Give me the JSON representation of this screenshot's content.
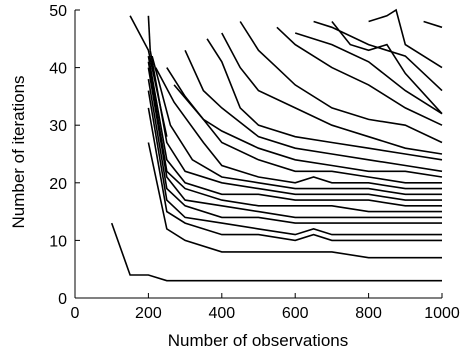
{
  "chart_data": {
    "type": "line",
    "title": "",
    "xlabel": "Number of observations",
    "ylabel": "Number of iterations",
    "xlim": [
      0,
      1000
    ],
    "ylim": [
      0,
      50
    ],
    "xticks": [
      0,
      200,
      400,
      600,
      800,
      1000
    ],
    "yticks": [
      0,
      10,
      20,
      30,
      40,
      50
    ],
    "xtick_labels": [
      "0",
      "200",
      "400",
      "600",
      "800",
      "1000"
    ],
    "ytick_labels": [
      "0",
      "10",
      "20",
      "30",
      "40",
      "50"
    ],
    "grid": false,
    "legend": "none",
    "line_color": "#000000",
    "series": [
      {
        "points": [
          [
            100,
            13
          ],
          [
            150,
            4
          ],
          [
            200,
            4
          ],
          [
            250,
            3
          ],
          [
            300,
            3
          ],
          [
            400,
            3
          ],
          [
            500,
            3
          ],
          [
            600,
            3
          ],
          [
            700,
            3
          ],
          [
            800,
            3
          ],
          [
            900,
            3
          ],
          [
            1000,
            3
          ]
        ]
      },
      {
        "points": [
          [
            200,
            27
          ],
          [
            250,
            12
          ],
          [
            300,
            10
          ],
          [
            400,
            8
          ],
          [
            500,
            8
          ],
          [
            600,
            8
          ],
          [
            700,
            8
          ],
          [
            800,
            7
          ],
          [
            900,
            7
          ],
          [
            1000,
            7
          ]
        ]
      },
      {
        "points": [
          [
            200,
            33
          ],
          [
            250,
            15
          ],
          [
            300,
            13
          ],
          [
            400,
            11
          ],
          [
            500,
            11
          ],
          [
            600,
            10
          ],
          [
            650,
            11
          ],
          [
            700,
            10
          ],
          [
            800,
            10
          ],
          [
            900,
            10
          ],
          [
            1000,
            10
          ]
        ]
      },
      {
        "points": [
          [
            200,
            36
          ],
          [
            250,
            17
          ],
          [
            300,
            14
          ],
          [
            400,
            13
          ],
          [
            500,
            12
          ],
          [
            600,
            11
          ],
          [
            650,
            12
          ],
          [
            700,
            11
          ],
          [
            800,
            11
          ],
          [
            900,
            11
          ],
          [
            1000,
            11
          ]
        ]
      },
      {
        "points": [
          [
            200,
            38
          ],
          [
            250,
            19
          ],
          [
            300,
            16
          ],
          [
            400,
            14
          ],
          [
            500,
            14
          ],
          [
            600,
            13
          ],
          [
            700,
            13
          ],
          [
            800,
            13
          ],
          [
            900,
            13
          ],
          [
            1000,
            13
          ]
        ]
      },
      {
        "points": [
          [
            200,
            40
          ],
          [
            250,
            21
          ],
          [
            300,
            17
          ],
          [
            400,
            16
          ],
          [
            500,
            15
          ],
          [
            600,
            14
          ],
          [
            700,
            14
          ],
          [
            800,
            14
          ],
          [
            900,
            14
          ],
          [
            1000,
            14
          ]
        ]
      },
      {
        "points": [
          [
            200,
            41
          ],
          [
            250,
            22
          ],
          [
            300,
            19
          ],
          [
            400,
            17
          ],
          [
            500,
            16
          ],
          [
            600,
            16
          ],
          [
            700,
            16
          ],
          [
            800,
            15
          ],
          [
            900,
            15
          ],
          [
            1000,
            15
          ]
        ]
      },
      {
        "points": [
          [
            200,
            42
          ],
          [
            250,
            24
          ],
          [
            300,
            20
          ],
          [
            400,
            18
          ],
          [
            500,
            18
          ],
          [
            600,
            17
          ],
          [
            700,
            17
          ],
          [
            800,
            17
          ],
          [
            900,
            16
          ],
          [
            1000,
            16
          ]
        ]
      },
      {
        "points": [
          [
            205,
            43
          ],
          [
            250,
            27
          ],
          [
            300,
            22
          ],
          [
            400,
            20
          ],
          [
            500,
            19
          ],
          [
            600,
            18
          ],
          [
            700,
            18
          ],
          [
            800,
            18
          ],
          [
            900,
            17
          ],
          [
            1000,
            17
          ]
        ]
      },
      {
        "points": [
          [
            210,
            42
          ],
          [
            260,
            30
          ],
          [
            320,
            24
          ],
          [
            400,
            21
          ],
          [
            500,
            20
          ],
          [
            600,
            19
          ],
          [
            700,
            19
          ],
          [
            800,
            19
          ],
          [
            900,
            18
          ],
          [
            1000,
            18
          ]
        ]
      },
      {
        "points": [
          [
            220,
            40
          ],
          [
            270,
            34
          ],
          [
            350,
            27
          ],
          [
            400,
            23
          ],
          [
            500,
            21
          ],
          [
            600,
            20
          ],
          [
            650,
            21
          ],
          [
            700,
            20
          ],
          [
            800,
            20
          ],
          [
            900,
            19
          ],
          [
            1000,
            19
          ]
        ]
      },
      {
        "points": [
          [
            250,
            40
          ],
          [
            300,
            35
          ],
          [
            400,
            27
          ],
          [
            500,
            24
          ],
          [
            600,
            22
          ],
          [
            700,
            22
          ],
          [
            800,
            21
          ],
          [
            900,
            20
          ],
          [
            1000,
            20
          ]
        ]
      },
      {
        "points": [
          [
            270,
            37
          ],
          [
            350,
            31
          ],
          [
            400,
            29
          ],
          [
            500,
            26
          ],
          [
            600,
            24
          ],
          [
            700,
            23
          ],
          [
            800,
            22
          ],
          [
            900,
            22
          ],
          [
            1000,
            21
          ]
        ]
      },
      {
        "points": [
          [
            300,
            43
          ],
          [
            350,
            36
          ],
          [
            400,
            33
          ],
          [
            500,
            28
          ],
          [
            600,
            26
          ],
          [
            700,
            25
          ],
          [
            800,
            24
          ],
          [
            900,
            23
          ],
          [
            1000,
            22
          ]
        ]
      },
      {
        "points": [
          [
            360,
            45
          ],
          [
            400,
            41
          ],
          [
            450,
            33
          ],
          [
            500,
            30
          ],
          [
            600,
            28
          ],
          [
            700,
            27
          ],
          [
            800,
            26
          ],
          [
            900,
            25
          ],
          [
            1000,
            24
          ]
        ]
      },
      {
        "points": [
          [
            400,
            46
          ],
          [
            450,
            40
          ],
          [
            500,
            36
          ],
          [
            600,
            33
          ],
          [
            700,
            30
          ],
          [
            800,
            28
          ],
          [
            900,
            26
          ],
          [
            1000,
            25
          ]
        ]
      },
      {
        "points": [
          [
            450,
            48
          ],
          [
            500,
            43
          ],
          [
            550,
            40
          ],
          [
            600,
            37
          ],
          [
            700,
            33
          ],
          [
            800,
            31
          ],
          [
            900,
            30
          ],
          [
            1000,
            27
          ]
        ]
      },
      {
        "points": [
          [
            550,
            47
          ],
          [
            600,
            44
          ],
          [
            700,
            40
          ],
          [
            800,
            37
          ],
          [
            900,
            33
          ],
          [
            1000,
            30
          ]
        ]
      },
      {
        "points": [
          [
            600,
            46
          ],
          [
            700,
            44
          ],
          [
            800,
            41
          ],
          [
            900,
            36
          ],
          [
            1000,
            32
          ]
        ]
      },
      {
        "points": [
          [
            650,
            48
          ],
          [
            700,
            47
          ],
          [
            800,
            44
          ],
          [
            900,
            42
          ],
          [
            1000,
            36
          ]
        ]
      },
      {
        "points": [
          [
            700,
            48
          ],
          [
            750,
            44
          ],
          [
            800,
            43
          ],
          [
            850,
            44
          ],
          [
            900,
            39
          ],
          [
            1000,
            32
          ]
        ]
      },
      {
        "points": [
          [
            800,
            48
          ],
          [
            850,
            49
          ],
          [
            875,
            50
          ],
          [
            900,
            44
          ],
          [
            1000,
            40
          ]
        ]
      },
      {
        "points": [
          [
            950,
            48
          ],
          [
            1000,
            47
          ]
        ]
      },
      {
        "points": [
          [
            150,
            49
          ],
          [
            200,
            43
          ],
          [
            250,
            28
          ]
        ]
      },
      {
        "points": [
          [
            200,
            49
          ],
          [
            205,
            43
          ]
        ]
      }
    ]
  }
}
